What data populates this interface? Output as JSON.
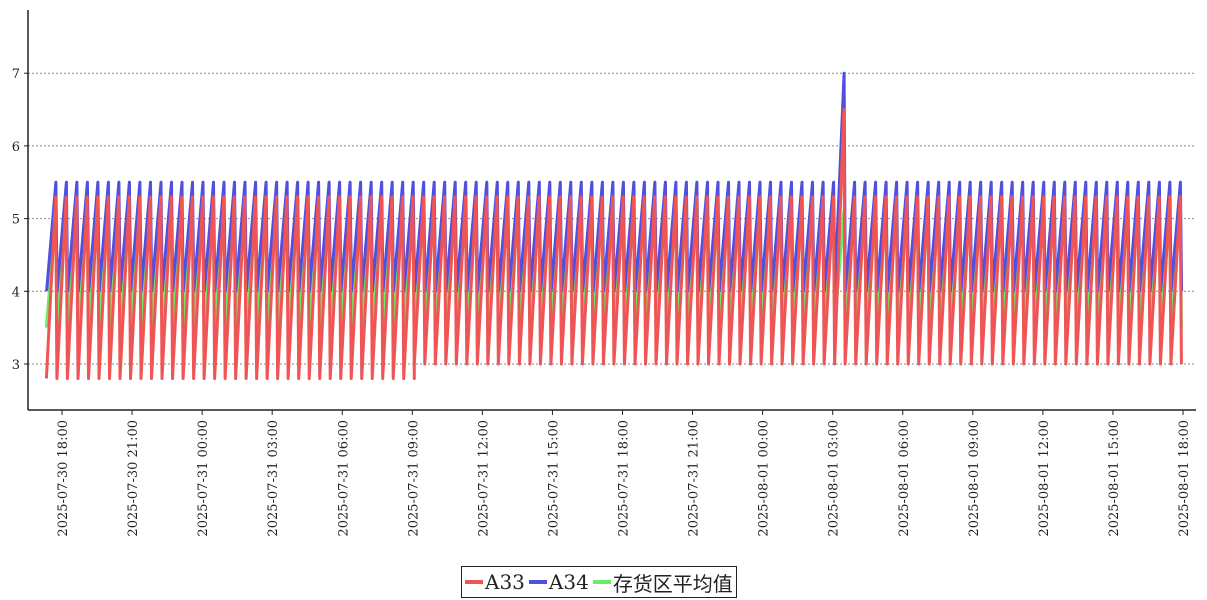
{
  "chart_data": {
    "type": "line",
    "title": "",
    "xlabel": "",
    "ylabel": "",
    "ylim": [
      2.4,
      7.9
    ],
    "yticks": [
      3,
      4,
      5,
      6,
      7
    ],
    "grid": "horizontal dotted",
    "x_start": "2025-07-30 17:00",
    "x_end": "2025-08-01 18:00",
    "xtick_labels": [
      "2025-07-30  18:00",
      "2025-07-30  21:00",
      "2025-07-31  00:00",
      "2025-07-31  03:00",
      "2025-07-31  06:00",
      "2025-07-31  09:00",
      "2025-07-31  12:00",
      "2025-07-31  15:00",
      "2025-07-31  18:00",
      "2025-07-31  21:00",
      "2025-08-01  00:00",
      "2025-08-01  03:00",
      "2025-08-01  06:00",
      "2025-08-01  09:00",
      "2025-08-01  12:00",
      "2025-08-01  15:00",
      "2025-08-01  18:00"
    ],
    "cycle_minutes": 27,
    "spike": {
      "time": "2025-08-01 03:00",
      "A33": 6.5,
      "A34": 7.0
    },
    "series": [
      {
        "name": "A33",
        "color": "#ef5555",
        "cycle_min": 2.8,
        "cycle_max": 5.3,
        "cycle_min_after_0900": 3.0
      },
      {
        "name": "A34",
        "color": "#4f4fe0",
        "cycle_min": 4.0,
        "cycle_max": 5.5
      },
      {
        "name": "存货区平均值",
        "color": "#66ee66",
        "cycle_min": 3.5,
        "cycle_max": 5.1
      }
    ],
    "legend_position": "bottom-center"
  },
  "legend": {
    "items": [
      {
        "label": "A33",
        "color": "#ef5555"
      },
      {
        "label": "A34",
        "color": "#4f4fe0"
      },
      {
        "label": "存货区平均值",
        "color": "#66ee66"
      }
    ]
  }
}
